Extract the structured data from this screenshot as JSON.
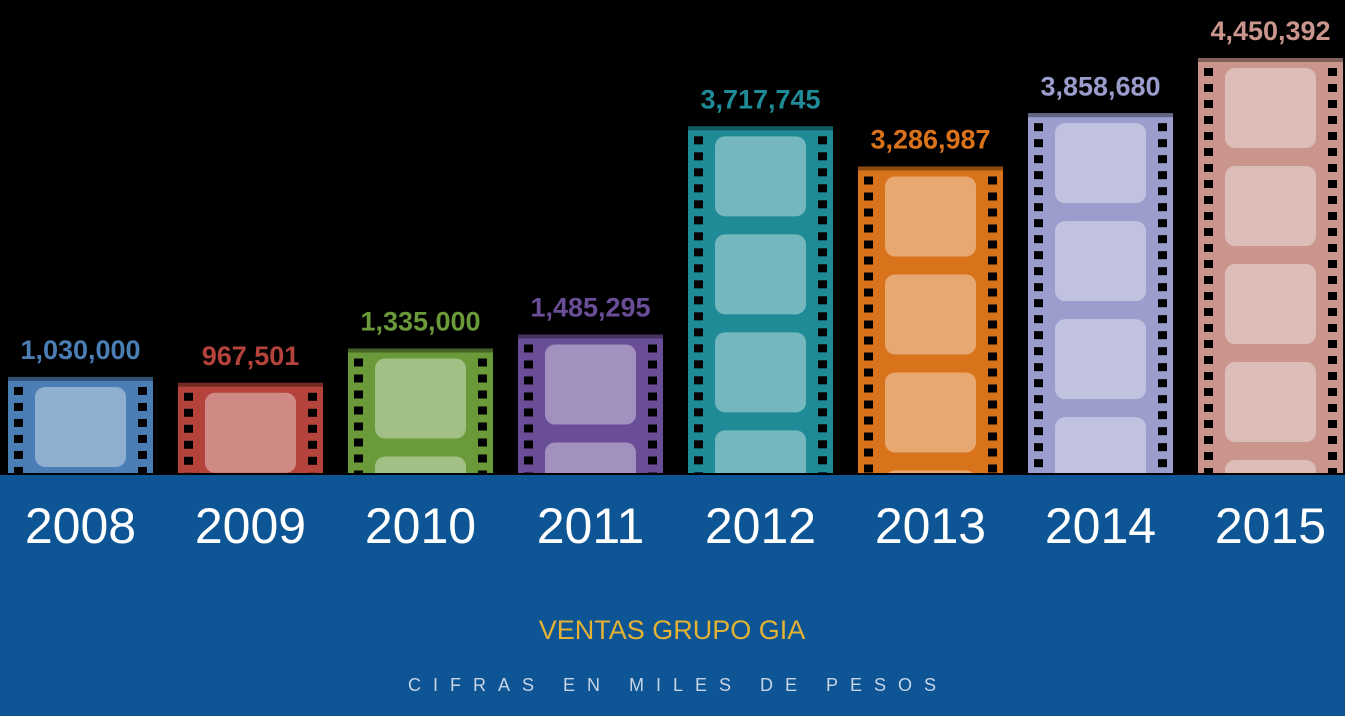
{
  "chart_data": {
    "type": "bar",
    "title": "VENTAS GRUPO GIA",
    "subtitle": "CIFRAS EN MILES DE PESOS",
    "categories": [
      "2008",
      "2009",
      "2010",
      "2011",
      "2012",
      "2013",
      "2014",
      "2015"
    ],
    "values": [
      1030000,
      967501,
      1335000,
      1485295,
      3717745,
      3286987,
      3858680,
      4450392
    ],
    "value_labels": [
      "1,030,000",
      "967,501",
      "1,335,000",
      "1,485,295",
      "3,717,745",
      "3,286,987",
      "3,858,680",
      "4,450,392"
    ],
    "colors": [
      "#4a7eb4",
      "#b3433b",
      "#6a9a3a",
      "#6a4d97",
      "#1f8b97",
      "#d9731b",
      "#9b9dcc",
      "#c9958c"
    ]
  }
}
